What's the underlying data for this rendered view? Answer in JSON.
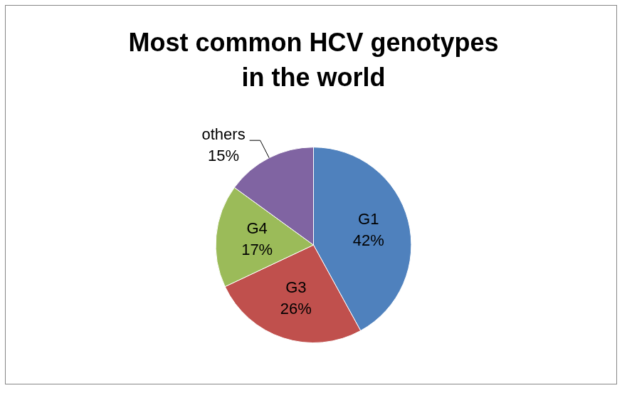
{
  "chart_data": {
    "type": "pie",
    "title": [
      "Most common HCV genotypes",
      "in the world"
    ],
    "categories": [
      "G1",
      "G3",
      "G4",
      "others"
    ],
    "values": [
      42,
      26,
      17,
      15
    ],
    "value_labels": [
      "42%",
      "26%",
      "17%",
      "15%"
    ],
    "colors": [
      "#4f81bd",
      "#c0504d",
      "#9bbb59",
      "#8064a2"
    ],
    "data_labels": true,
    "legend": false
  }
}
